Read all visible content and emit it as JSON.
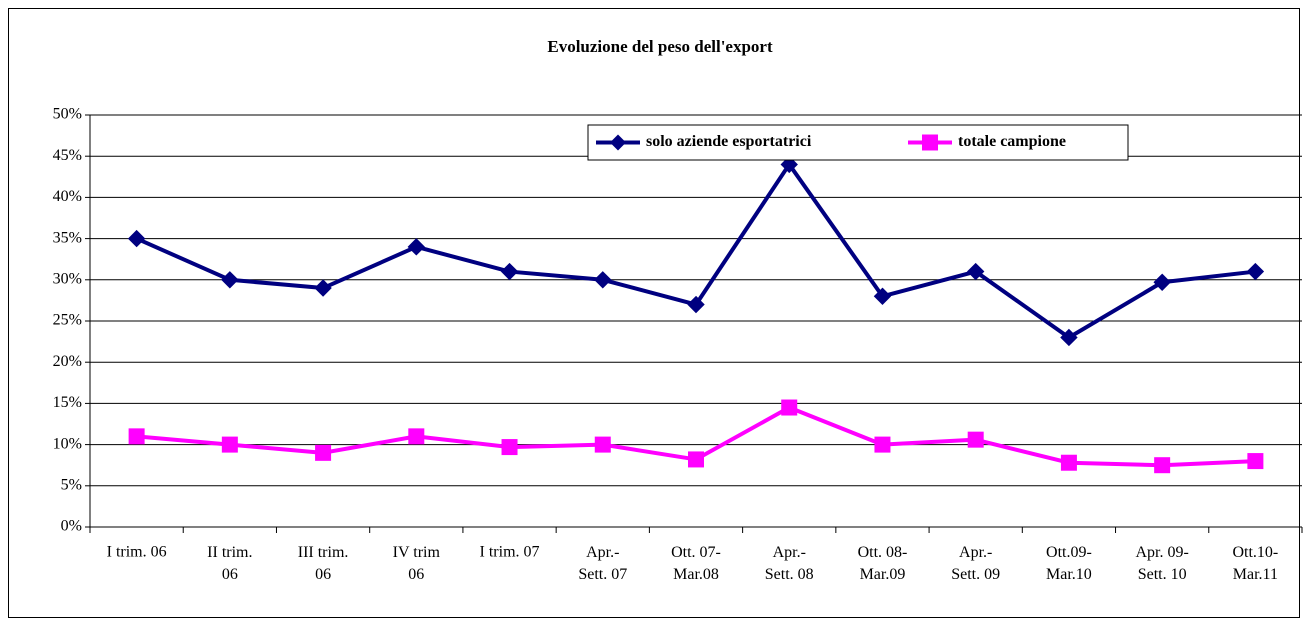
{
  "chart_data": {
    "type": "line",
    "title": "Evoluzione del peso dell'export",
    "categories": [
      "I trim. 06",
      "II trim.\n06",
      "III trim.\n06",
      "IV trim\n06",
      "I trim. 07",
      "Apr.-\nSett. 07",
      "Ott. 07-\nMar.08",
      "Apr.-\nSett. 08",
      "Ott. 08-\nMar.09",
      "Apr.-\nSett. 09",
      "Ott.09-\nMar.10",
      "Apr. 09-\nSett. 10",
      "Ott.10-\nMar.11"
    ],
    "series": [
      {
        "name": "solo aziende esportatrici",
        "color": "#000080",
        "marker": "diamond",
        "values": [
          35,
          30,
          29,
          34,
          31,
          30,
          27,
          44,
          28,
          31,
          23,
          29.7,
          31
        ]
      },
      {
        "name": "totale campione",
        "color": "#ff00ff",
        "marker": "square",
        "values": [
          11,
          10,
          9,
          11,
          9.7,
          10,
          8.2,
          14.5,
          10,
          10.6,
          7.8,
          7.5,
          8
        ]
      }
    ],
    "ylim": [
      0,
      50
    ],
    "yticks": [
      {
        "value": 0,
        "label": "0%"
      },
      {
        "value": 5,
        "label": "5%"
      },
      {
        "value": 10,
        "label": "10%"
      },
      {
        "value": 15,
        "label": "15%"
      },
      {
        "value": 20,
        "label": "20%"
      },
      {
        "value": 25,
        "label": "25%"
      },
      {
        "value": 30,
        "label": "30%"
      },
      {
        "value": 35,
        "label": "35%"
      },
      {
        "value": 40,
        "label": "40%"
      },
      {
        "value": 45,
        "label": "45%"
      },
      {
        "value": 50,
        "label": "50%"
      }
    ],
    "grid": true,
    "legend": "top"
  }
}
